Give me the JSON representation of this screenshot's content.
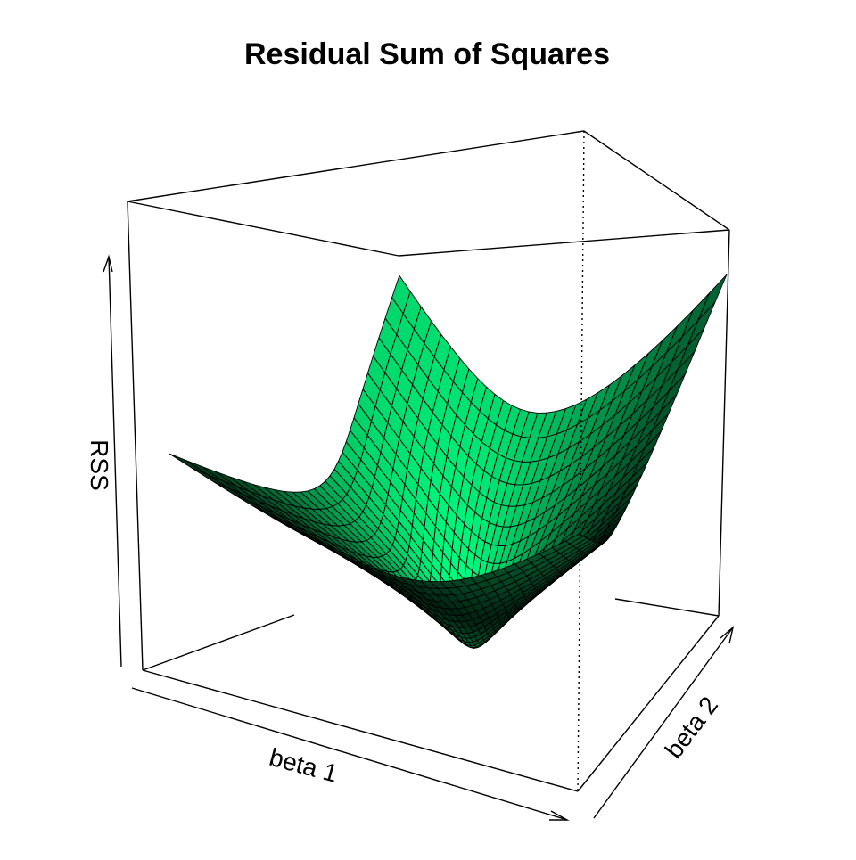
{
  "chart_data": {
    "type": "surface",
    "title": "Residual Sum of Squares",
    "xlabel": "beta 1",
    "ylabel": "beta 2",
    "zlabel": "RSS",
    "grid_size": [
      30,
      30
    ],
    "surface": "paraboloid (bowl) with minimum near the center of the beta 1 / beta 2 grid",
    "box": true,
    "ticks": false,
    "colors": {
      "base": "#00FF80",
      "shade": "lighting-shaded green",
      "edge": "#000000",
      "background": "#FFFFFF"
    }
  }
}
